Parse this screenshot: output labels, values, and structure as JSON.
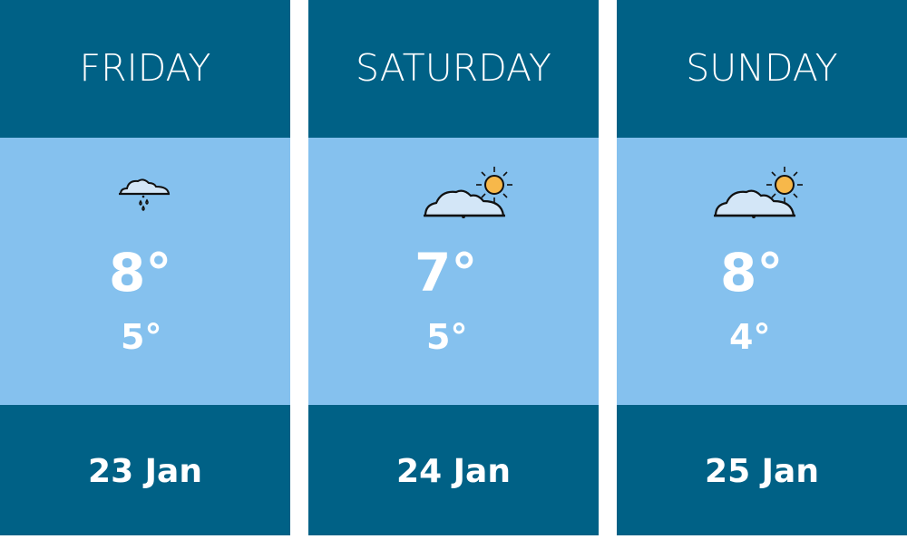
{
  "colors": {
    "header": "#006186",
    "body": "#85c1ee",
    "sun": "#f7b84a",
    "cloud": "#d3e6f7"
  },
  "days": [
    {
      "day": "FRIDAY",
      "icon": "cloud-rain-icon",
      "high": "8°",
      "low": "5°",
      "date": "23 Jan"
    },
    {
      "day": "SATURDAY",
      "icon": "partly-sunny-icon",
      "high": "7°",
      "low": "5°",
      "date": "24 Jan"
    },
    {
      "day": "SUNDAY",
      "icon": "partly-sunny-icon",
      "high": "8°",
      "low": "4°",
      "date": "25 Jan"
    }
  ]
}
